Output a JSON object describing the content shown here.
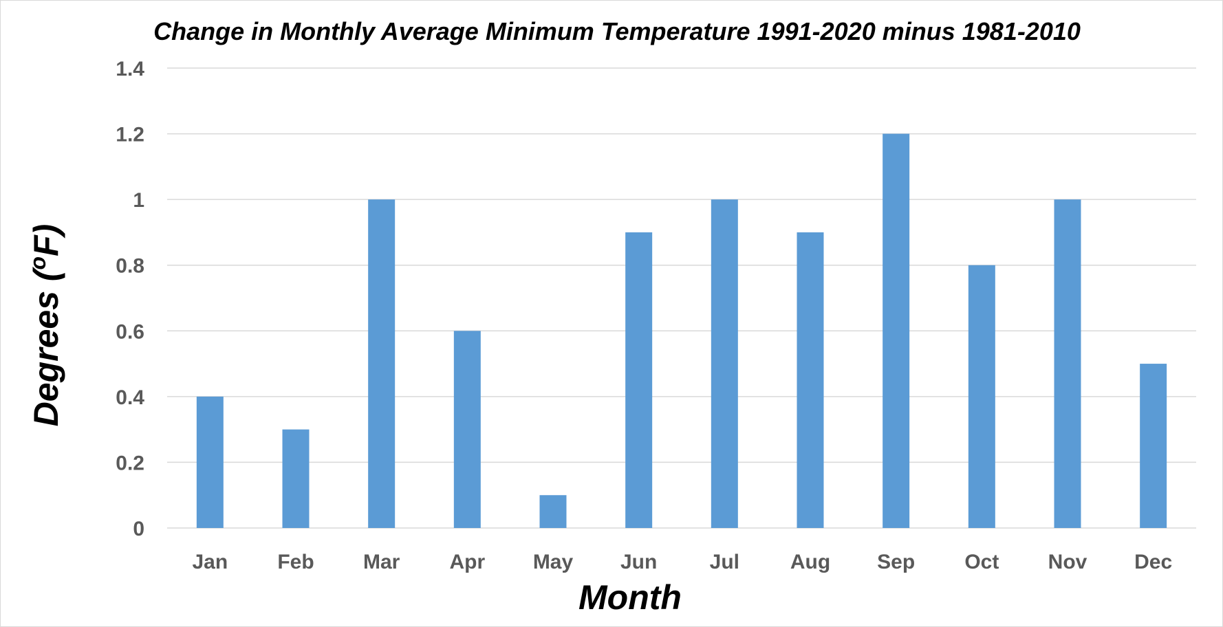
{
  "chart_data": {
    "type": "bar",
    "title": "Change in Monthly Average Minimum Temperature 1991-2020 minus 1981-2010",
    "xlabel": "Month",
    "ylabel_prefix": "Degrees (",
    "ylabel_superscript": "o",
    "ylabel_suffix": "F)",
    "categories": [
      "Jan",
      "Feb",
      "Mar",
      "Apr",
      "May",
      "Jun",
      "Jul",
      "Aug",
      "Sep",
      "Oct",
      "Nov",
      "Dec"
    ],
    "values": [
      0.4,
      0.3,
      1.0,
      0.6,
      0.1,
      0.9,
      1.0,
      0.9,
      1.2,
      0.8,
      1.0,
      0.5
    ],
    "ylim": [
      0,
      1.4
    ],
    "yticks": [
      "0",
      "0.2",
      "0.4",
      "0.6",
      "0.8",
      "1",
      "1.2",
      "1.4"
    ],
    "grid": true,
    "legend": "none",
    "bar_color": "#5b9bd5",
    "grid_color": "#d9d9d9",
    "tick_label_color": "#595959"
  }
}
